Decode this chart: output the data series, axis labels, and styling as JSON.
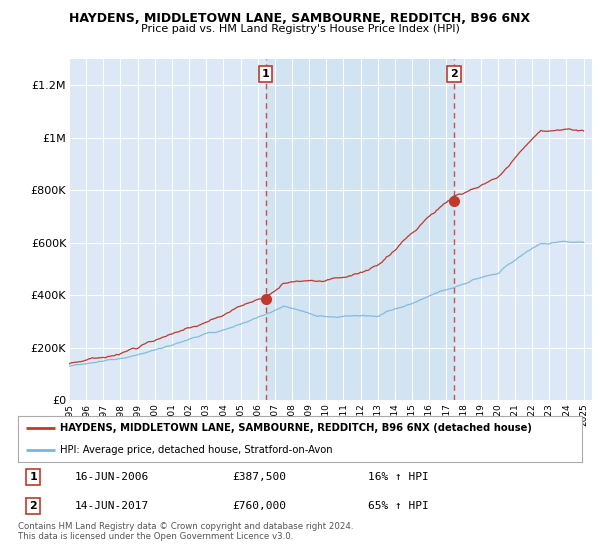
{
  "title": "HAYDENS, MIDDLETOWN LANE, SAMBOURNE, REDDITCH, B96 6NX",
  "subtitle": "Price paid vs. HM Land Registry's House Price Index (HPI)",
  "ylabel_ticks": [
    "£0",
    "£200K",
    "£400K",
    "£600K",
    "£800K",
    "£1M",
    "£1.2M"
  ],
  "ytick_values": [
    0,
    200000,
    400000,
    600000,
    800000,
    1000000,
    1200000
  ],
  "ylim": [
    0,
    1300000
  ],
  "xlim_start": 1995.0,
  "xlim_end": 2025.5,
  "sale1_x": 2006.46,
  "sale1_y": 387500,
  "sale2_x": 2017.45,
  "sale2_y": 760000,
  "sale1_label": "16-JUN-2006",
  "sale1_price": "£387,500",
  "sale1_hpi": "16% ↑ HPI",
  "sale2_label": "14-JUN-2017",
  "sale2_price": "£760,000",
  "sale2_hpi": "65% ↑ HPI",
  "legend_line1": "HAYDENS, MIDDLETOWN LANE, SAMBOURNE, REDDITCH, B96 6NX (detached house)",
  "legend_line2": "HPI: Average price, detached house, Stratford-on-Avon",
  "footer": "Contains HM Land Registry data © Crown copyright and database right 2024.\nThis data is licensed under the Open Government Licence v3.0.",
  "hpi_color": "#7ab8d8",
  "price_color": "#c0392b",
  "vline_color": "#c0392b",
  "grid_color": "white",
  "plot_bg_color": "#dce8f5",
  "between_bg_color": "#cce0f0",
  "fig_bg": "white"
}
